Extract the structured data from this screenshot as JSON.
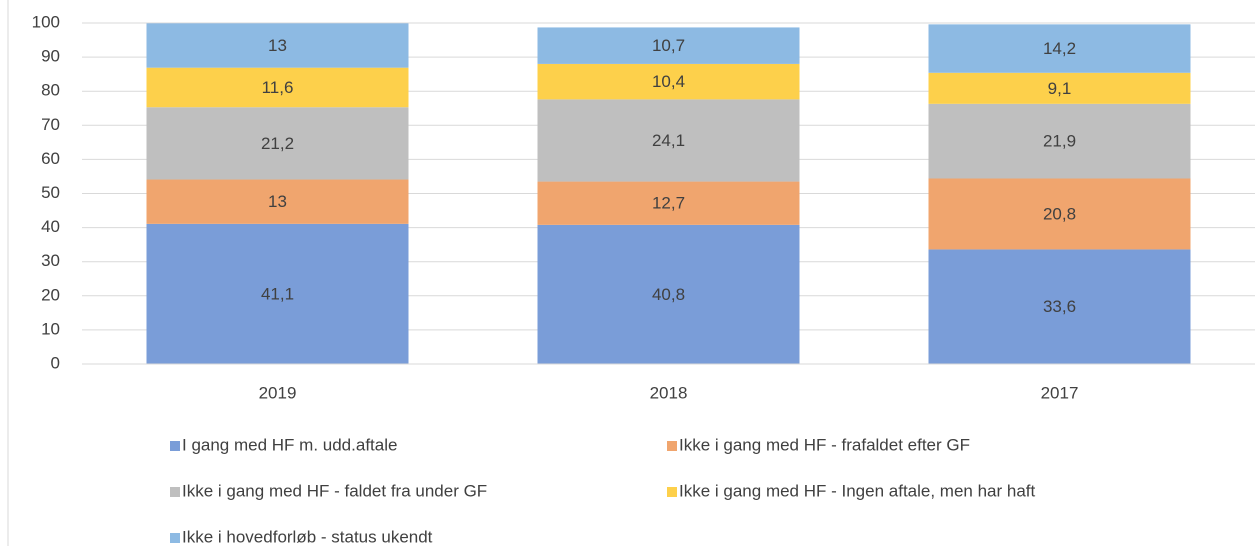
{
  "chart_data": {
    "type": "stacked_bar",
    "categories": [
      "2019",
      "2018",
      "2017"
    ],
    "series": [
      {
        "name": "I gang med HF m. udd.aftale",
        "color": "#7a9dd8",
        "values": [
          41.1,
          40.8,
          33.6
        ],
        "value_labels": [
          "41,1",
          "40,8",
          "33,6"
        ]
      },
      {
        "name": "Ikke i gang med HF - frafaldet efter GF",
        "color": "#f0a56e",
        "values": [
          13,
          12.7,
          20.8
        ],
        "value_labels": [
          "13",
          "12,7",
          "20,8"
        ]
      },
      {
        "name": "Ikke i gang med HF - faldet fra under GF",
        "color": "#bfbfbf",
        "values": [
          21.2,
          24.1,
          21.9
        ],
        "value_labels": [
          "21,2",
          "24,1",
          "21,9"
        ]
      },
      {
        "name": "Ikke i gang med HF - Ingen aftale, men har haft",
        "color": "#fdd04b",
        "values": [
          11.6,
          10.4,
          9.1
        ],
        "value_labels": [
          "11,6",
          "10,4",
          "9,1"
        ]
      },
      {
        "name": "Ikke i hovedforløb - status ukendt",
        "color": "#8dbae3",
        "values": [
          13,
          10.7,
          14.2
        ],
        "value_labels": [
          "13",
          "10,7",
          "14,2"
        ]
      }
    ],
    "ylim": [
      0,
      100
    ],
    "yticks": [
      0,
      10,
      20,
      30,
      40,
      50,
      60,
      70,
      80,
      90,
      100
    ],
    "grid": true,
    "legend": "bottom"
  }
}
